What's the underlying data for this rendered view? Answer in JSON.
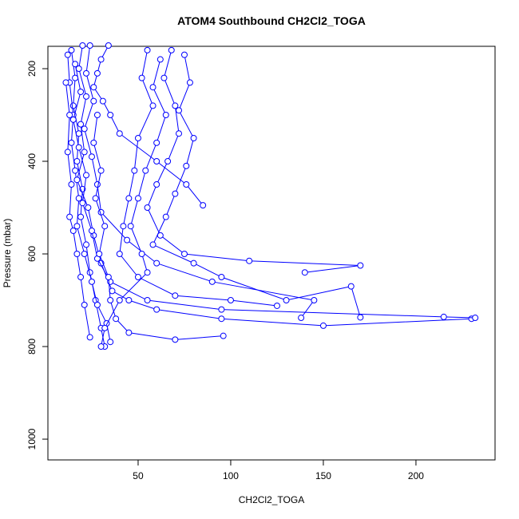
{
  "chart_data": {
    "type": "scatter",
    "lines": true,
    "title": "ATOM4 Southbound CH2Cl2_TOGA",
    "x_label": "CH2Cl2_TOGA",
    "y_label": "Pressure (mbar)",
    "color": "#0000ff",
    "xlim": [
      1.3,
      242.7
    ],
    "ylim": [
      1044.8,
      151.7
    ],
    "xticks": [
      50,
      100,
      150,
      200
    ],
    "yticks": [
      200,
      400,
      600,
      800,
      1000
    ],
    "series": [
      {
        "x": [
          14,
          16,
          15,
          18,
          17,
          20,
          19,
          22,
          24,
          27,
          30,
          32
        ],
        "values": [
          160,
          220,
          280,
          340,
          400,
          460,
          520,
          580,
          640,
          700,
          760,
          800
        ]
      },
      {
        "x": [
          12,
          13,
          15,
          14,
          16,
          18,
          17,
          21,
          25,
          28,
          33,
          35
        ],
        "values": [
          170,
          230,
          300,
          360,
          420,
          480,
          540,
          600,
          660,
          710,
          750,
          790
        ]
      },
      {
        "x": [
          20,
          18,
          22,
          19,
          21,
          17,
          23,
          26,
          30,
          36,
          45,
          60,
          95,
          150,
          230
        ],
        "values": [
          150,
          200,
          260,
          320,
          380,
          440,
          500,
          560,
          620,
          680,
          700,
          720,
          740,
          755,
          740
        ]
      },
      {
        "x": [
          68,
          64,
          70,
          72,
          66,
          60,
          55,
          62,
          75,
          110,
          170,
          140
        ],
        "values": [
          160,
          220,
          280,
          340,
          400,
          450,
          500,
          560,
          600,
          615,
          625,
          640
        ]
      },
      {
        "x": [
          75,
          78,
          72,
          80,
          76,
          70,
          65,
          58,
          80,
          95,
          130,
          165,
          170
        ],
        "values": [
          170,
          230,
          290,
          350,
          410,
          470,
          520,
          580,
          620,
          650,
          700,
          670,
          737
        ]
      },
      {
        "x": [
          55,
          52,
          58,
          50,
          48,
          45,
          42,
          40,
          50,
          70,
          100,
          125
        ],
        "values": [
          160,
          220,
          280,
          350,
          420,
          480,
          540,
          600,
          650,
          690,
          700,
          712
        ]
      },
      {
        "x": [
          16,
          19,
          15,
          18,
          22,
          20,
          25,
          28,
          35,
          55,
          95,
          215,
          232
        ],
        "values": [
          190,
          250,
          310,
          370,
          430,
          490,
          550,
          610,
          660,
          700,
          720,
          736,
          738
        ]
      },
      {
        "x": [
          24,
          22,
          26,
          21,
          25,
          28,
          30,
          44,
          60,
          90,
          145,
          138
        ],
        "values": [
          150,
          210,
          270,
          330,
          390,
          450,
          510,
          570,
          620,
          660,
          700,
          738
        ]
      },
      {
        "x": [
          62,
          58,
          65,
          60,
          54,
          50,
          46,
          52,
          55,
          40,
          32,
          30
        ],
        "values": [
          180,
          240,
          300,
          360,
          420,
          480,
          540,
          600,
          640,
          700,
          760,
          800
        ]
      },
      {
        "x": [
          28,
          26,
          30,
          27,
          32,
          29,
          34,
          35,
          38,
          45,
          70,
          96
        ],
        "values": [
          300,
          360,
          420,
          480,
          540,
          600,
          650,
          700,
          740,
          770,
          785,
          777
        ]
      },
      {
        "x": [
          11,
          13,
          12,
          14,
          13,
          15,
          17,
          19,
          21,
          24
        ],
        "values": [
          230,
          300,
          380,
          450,
          520,
          550,
          600,
          650,
          710,
          780
        ]
      },
      {
        "x": [
          34,
          30,
          28,
          26,
          31,
          35,
          40,
          60,
          76,
          85
        ],
        "values": [
          150,
          180,
          210,
          240,
          270,
          300,
          340,
          400,
          450,
          495
        ]
      }
    ]
  }
}
